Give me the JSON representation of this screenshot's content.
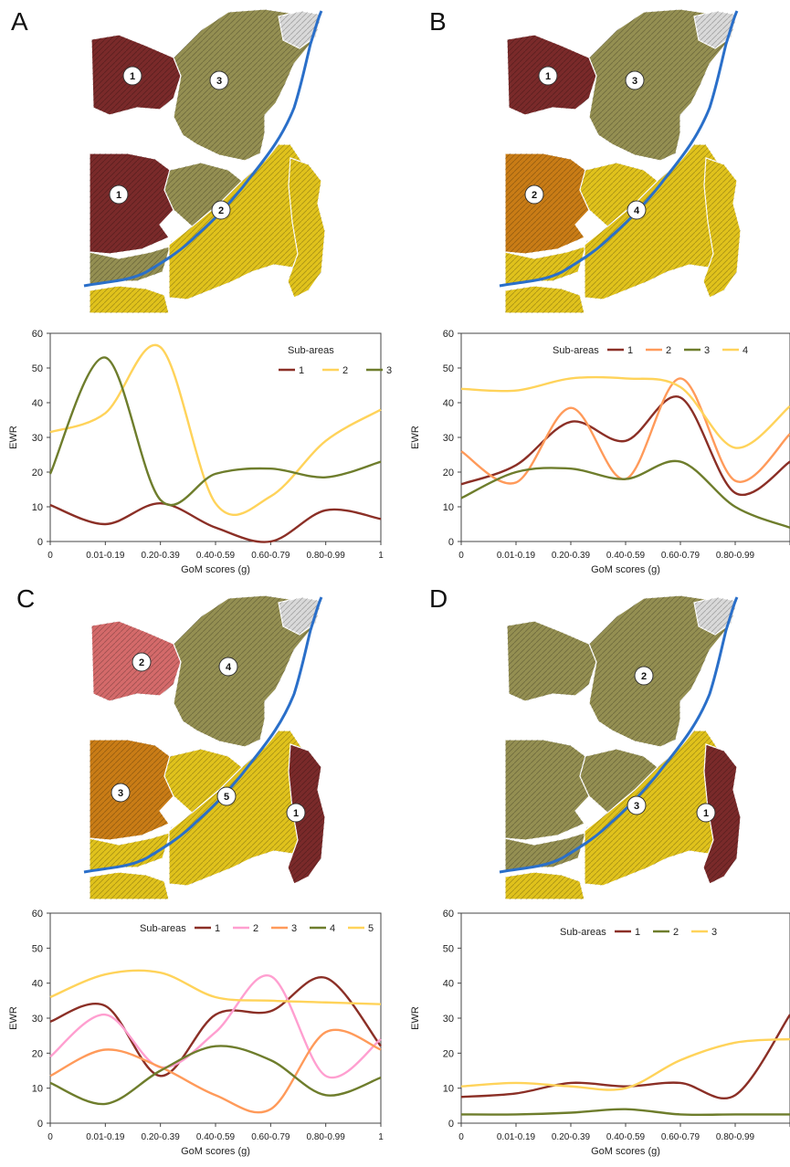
{
  "panels": [
    {
      "letter": "A",
      "map_labels": [
        "1",
        "3",
        "1",
        "2"
      ],
      "chart_data": {
        "type": "line",
        "categories": [
          "0",
          "0.01-0.19",
          "0.20-0.39",
          "0.40-0.59",
          "0.60-0.79",
          "0.80-0.99",
          "1"
        ],
        "xlabel": "GoM scores (g)",
        "ylabel": "EWR",
        "ylim": [
          0,
          60
        ],
        "yticks": [
          0,
          10,
          20,
          30,
          40,
          50,
          60
        ],
        "legend_title": "Sub-areas",
        "series": [
          {
            "name": "1",
            "color": "#8b2f26",
            "values": [
              10.5,
              5,
              11,
              4,
              0,
              9,
              6.5
            ]
          },
          {
            "name": "2",
            "color": "#ffd35a",
            "values": [
              31.5,
              37,
              56,
              11,
              13,
              29,
              38
            ]
          },
          {
            "name": "3",
            "color": "#6e7d2c",
            "values": [
              19.5,
              53,
              12,
              19.5,
              21,
              18.5,
              23
            ]
          }
        ]
      }
    },
    {
      "letter": "B",
      "map_labels": [
        "1",
        "3",
        "2",
        "4"
      ],
      "chart_data": {
        "type": "line",
        "categories": [
          "0",
          "0.01-0.19",
          "0.20-0.39",
          "0.40-0.59",
          "0.60-0.79",
          "0.80-0.99",
          ""
        ],
        "xlabel": "GoM scores (g)",
        "ylabel": "EWR",
        "ylim": [
          0,
          60
        ],
        "yticks": [
          0,
          10,
          20,
          30,
          40,
          50,
          60
        ],
        "legend_title": "Sub-areas",
        "series": [
          {
            "name": "1",
            "color": "#8b2f26",
            "values": [
              16.5,
              22,
              34.5,
              29,
              41.5,
              14,
              23
            ]
          },
          {
            "name": "2",
            "color": "#ff9a5a",
            "values": [
              26,
              17,
              38.5,
              18,
              47,
              17.5,
              31
            ]
          },
          {
            "name": "3",
            "color": "#6e7d2c",
            "values": [
              12.5,
              20,
              21,
              18,
              23,
              10,
              4
            ]
          },
          {
            "name": "4",
            "color": "#ffd35a",
            "values": [
              44,
              43.5,
              47,
              47,
              44.5,
              27,
              39
            ]
          }
        ]
      }
    },
    {
      "letter": "C",
      "map_labels": [
        "2",
        "4",
        "3",
        "5",
        "1"
      ],
      "chart_data": {
        "type": "line",
        "categories": [
          "0",
          "0.01-0.19",
          "0.20-0.39",
          "0.40-0.59",
          "0.60-0.79",
          "0.80-0.99",
          "1"
        ],
        "xlabel": "GoM scores (g)",
        "ylabel": "EWR",
        "ylim": [
          0,
          60
        ],
        "yticks": [
          0,
          10,
          20,
          30,
          40,
          50,
          60
        ],
        "legend_title": "Sub-areas",
        "series": [
          {
            "name": "1",
            "color": "#8b2f26",
            "values": [
              29,
              33.5,
              13.5,
              31,
              32,
              41.5,
              22
            ]
          },
          {
            "name": "2",
            "color": "#ff9fd0",
            "values": [
              19,
              31,
              16,
              26,
              42,
              13.5,
              24
            ]
          },
          {
            "name": "3",
            "color": "#ff9a5a",
            "values": [
              13.5,
              21,
              16,
              8,
              4,
              26,
              21
            ]
          },
          {
            "name": "4",
            "color": "#6e7d2c",
            "values": [
              11.5,
              5.5,
              15,
              22,
              18,
              8,
              13
            ]
          },
          {
            "name": "5",
            "color": "#ffd35a",
            "values": [
              36,
              42.5,
              43,
              36,
              35,
              34.5,
              34
            ]
          }
        ]
      }
    },
    {
      "letter": "D",
      "map_labels": [
        "2",
        "3",
        "1"
      ],
      "chart_data": {
        "type": "line",
        "categories": [
          "0",
          "0.01-0.19",
          "0.20-0.39",
          "0.40-0.59",
          "0.60-0.79",
          "0.80-0.99",
          ""
        ],
        "xlabel": "GoM scores (g)",
        "ylabel": "EWR",
        "ylim": [
          0,
          60
        ],
        "yticks": [
          0,
          10,
          20,
          30,
          40,
          50,
          60
        ],
        "legend_title": "Sub-areas",
        "series": [
          {
            "name": "1",
            "color": "#8b2f26",
            "values": [
              7.5,
              8.5,
              11.5,
              10.5,
              11.5,
              8,
              31
            ]
          },
          {
            "name": "2",
            "color": "#6e7d2c",
            "values": [
              2.5,
              2.5,
              3,
              4,
              2.5,
              2.5,
              2.5
            ]
          },
          {
            "name": "3",
            "color": "#ffd35a",
            "values": [
              10.5,
              11.5,
              10.5,
              10,
              18,
              23,
              24
            ]
          }
        ]
      }
    }
  ],
  "colors": {
    "darkred": "#7a2a2a",
    "olive": "#948f52",
    "yellow": "#e0c21c",
    "orange": "#c97c16",
    "pink": "#d46a6a",
    "river": "#2a6fc9",
    "grey": "#d9d9d9"
  }
}
